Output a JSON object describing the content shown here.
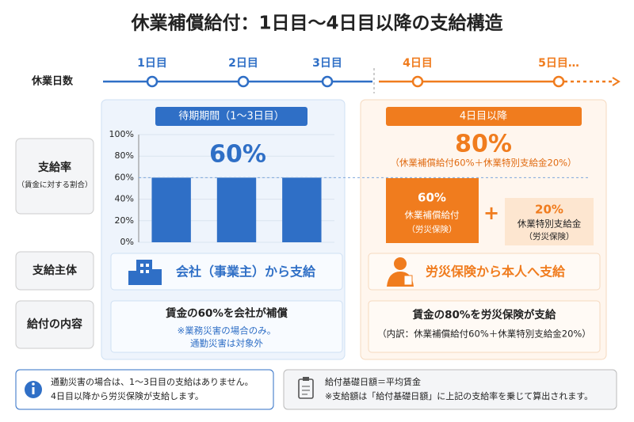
{
  "title": "休業補償給付：1日目〜4日目以降の支給構造",
  "timeline": {
    "label": "休業日数",
    "days": [
      "1日目",
      "2日目",
      "3日目",
      "4日目",
      "5日目…"
    ]
  },
  "row_labels": {
    "rate": "支給率",
    "rate_note": "（賃金に対する割合）",
    "payer": "支給主体",
    "content": "給付の内容"
  },
  "left": {
    "header": "待期期間（1〜3日目）",
    "rate": "60%",
    "payer": "会社（事業主）から支給",
    "content": "賃金の60%を会社が補償",
    "notes": [
      "※業務災害の場合のみ。",
      "通勤災害は対象外"
    ]
  },
  "right": {
    "header": "4日目以降",
    "rate": "80%",
    "breakdown": "（休業補償給付60%＋休業特別支給金20%）",
    "box1": {
      "percent": "60%",
      "name": "休業補償給付",
      "sub": "（労災保険）"
    },
    "plus": "+",
    "box2": {
      "percent": "20%",
      "name": "休業特別支給金",
      "sub": "（労災保険）"
    },
    "payer": "労災保険から本人へ支給",
    "content": "賃金の80%を労災保険が支給",
    "detail": "（内訳：休業補償給付60%＋休業特別支給金20%）"
  },
  "footer": {
    "left": [
      "通勤災害の場合は、1〜3日目の支給はありません。",
      "4日目以降から労災保険が支給します。"
    ],
    "right": [
      "給付基礎日額＝平均賃金",
      "※支給額は「給付基礎日額」に上記の支給率を乗じて算出されます。"
    ]
  },
  "chart_data": {
    "type": "bar",
    "categories": [
      null,
      null,
      null
    ],
    "values": [
      60,
      60,
      60
    ],
    "color": "#2f6fc6",
    "ylim": [
      0,
      100
    ],
    "yticks": [
      {
        "value": 0,
        "label": "0%"
      },
      {
        "value": 20,
        "label": "20%"
      },
      {
        "value": 40,
        "label": "40%"
      },
      {
        "value": 60,
        "label": "60%"
      },
      {
        "value": 80,
        "label": "80%"
      },
      {
        "value": 100,
        "label": "100%"
      }
    ],
    "grid": true
  }
}
